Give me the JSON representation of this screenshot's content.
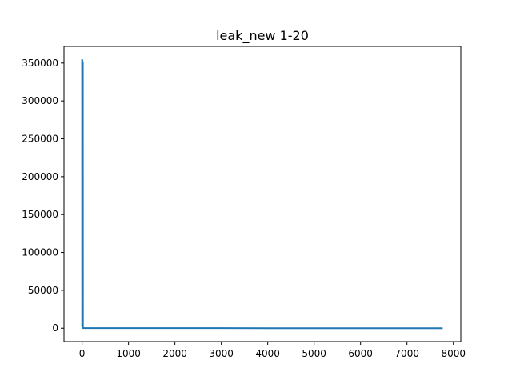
{
  "chart_data": {
    "type": "line",
    "title": "leak_new  1-20",
    "xlabel": "",
    "ylabel": "",
    "xlim": [
      -390,
      8160
    ],
    "ylim": [
      -17700,
      372000
    ],
    "xticks": [
      0,
      1000,
      2000,
      3000,
      4000,
      5000,
      6000,
      7000,
      8000
    ],
    "yticks": [
      0,
      50000,
      100000,
      150000,
      200000,
      250000,
      300000,
      350000
    ],
    "grid": false,
    "legend": "none",
    "series": [
      {
        "color": "#1f77b4",
        "x": [
          0,
          2,
          4,
          6,
          8,
          10,
          12,
          14,
          16,
          18,
          20,
          30,
          100,
          1000,
          2000,
          3000,
          4000,
          5000,
          6000,
          7000,
          7770
        ],
        "y": [
          355000,
          2000,
          354000,
          1500,
          353000,
          1200,
          352000,
          900,
          351000,
          600,
          200,
          120,
          100,
          80,
          70,
          60,
          50,
          40,
          30,
          20,
          10
        ]
      }
    ]
  }
}
